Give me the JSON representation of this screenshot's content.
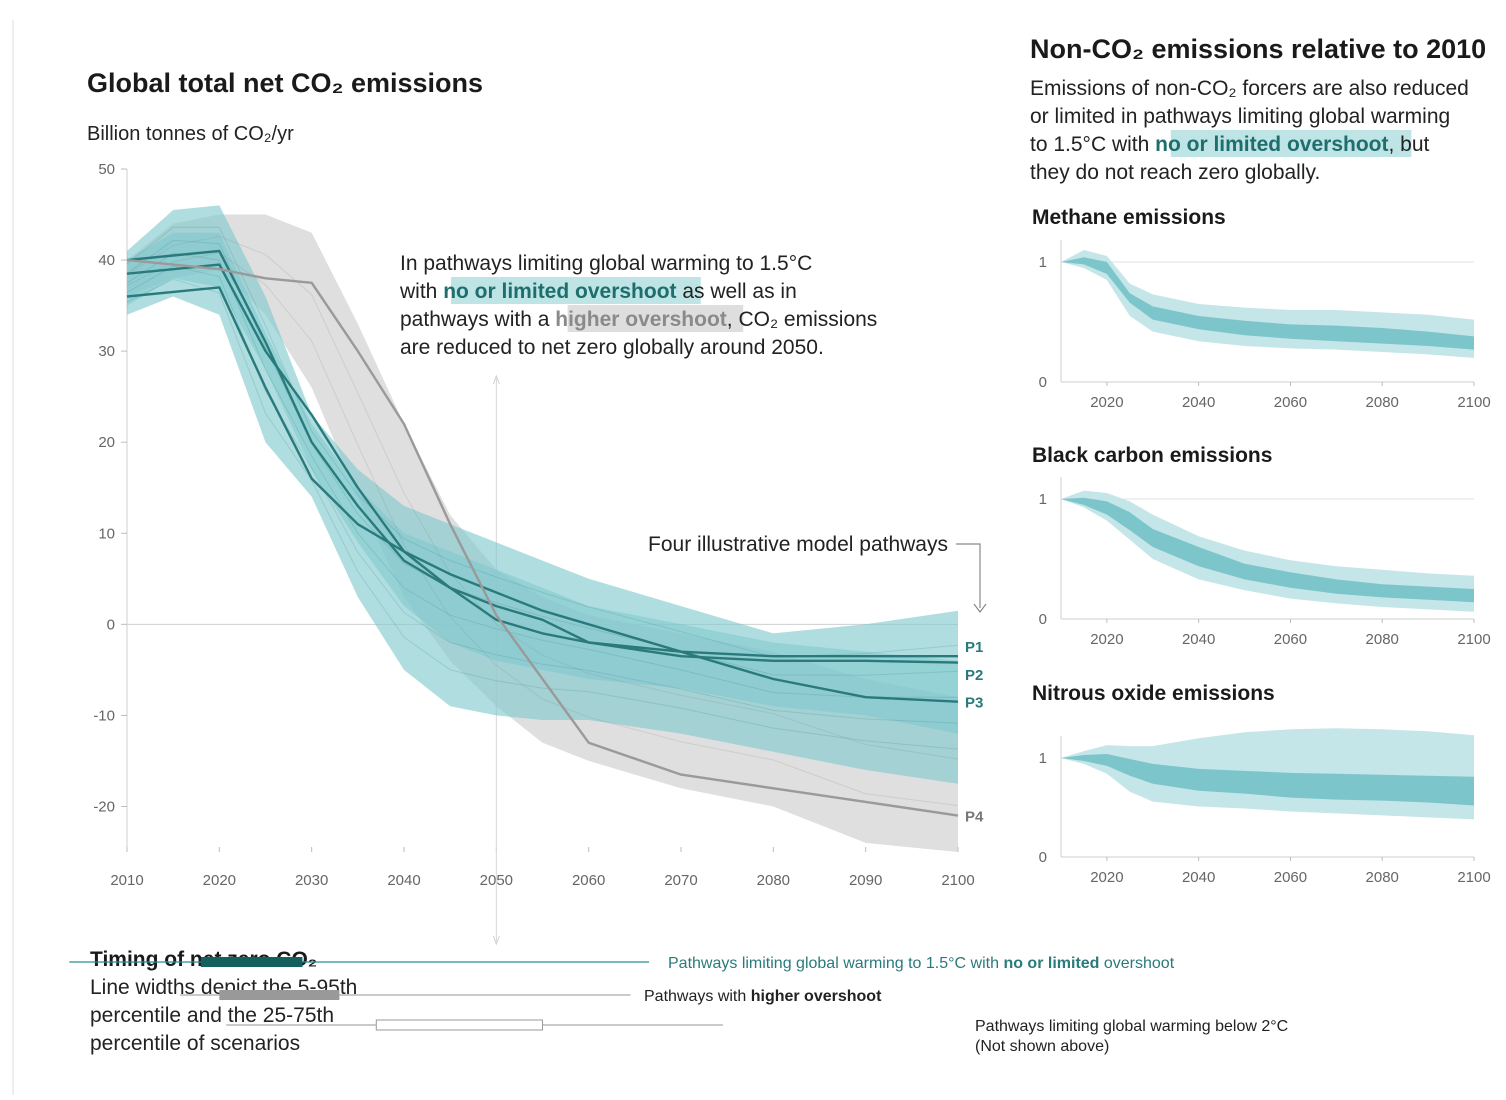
{
  "left": {
    "title": "Global total net CO₂ emissions",
    "ylabel": "Billion tonnes of CO₂/yr",
    "annotation_lines": [
      [
        "In pathways limiting global warming to 1.5°C"
      ],
      [
        "with ",
        "no or limited overshoot",
        " as well as in"
      ],
      [
        "pathways with a ",
        "higher overshoot",
        ", CO₂ emissions"
      ],
      [
        "are reduced to net zero globally around 2050."
      ]
    ],
    "pathways_note": "Four illustrative model pathways"
  },
  "right": {
    "title": "Non-CO₂ emissions relative to 2010",
    "intro_lines": [
      [
        "Emissions of non-CO₂ forcers are also reduced"
      ],
      [
        "or limited in pathways limiting global warming"
      ],
      [
        "to 1.5°C with ",
        "no or limited overshoot",
        ", but"
      ],
      [
        "they do not reach zero globally."
      ]
    ]
  },
  "timing": {
    "title": "Timing of net zero CO₂",
    "body_lines": [
      "Line widths depict the 5-95th",
      "percentile and the 25-75th",
      "percentile of scenarios"
    ],
    "rows": [
      {
        "range_5_95": [
          2007,
          2066
        ],
        "range_25_75": [
          2018,
          2029
        ],
        "style": "teal",
        "label_parts": [
          "Pathways limiting global warming to 1.5°C with ",
          "no or limited",
          " overshoot"
        ]
      },
      {
        "range_5_95": [
          2019,
          2064
        ],
        "range_25_75": [
          2020,
          2033
        ],
        "style": "grey",
        "label_parts": [
          "Pathways with ",
          "higher overshoot",
          ""
        ]
      },
      {
        "range_5_95": [
          2024,
          2074
        ],
        "range_25_75": [
          2037,
          2055
        ],
        "style": "white",
        "label_parts": [
          "Pathways limiting global warming below 2°C"
        ],
        "label_line2": "(Not shown above)"
      }
    ]
  },
  "colors": {
    "teal_band": "#7ec8cd",
    "teal_line": "#2a7a7c",
    "grey_band": "#c9c9c9",
    "grey_line": "#9a9a9a",
    "text_teal": "#1f6e6e"
  },
  "chart_data": [
    {
      "type": "area",
      "xlabel": "",
      "ylabel": "Billion tonnes of CO₂/yr",
      "xlim": [
        2010,
        2100
      ],
      "ylim": [
        -25,
        50
      ],
      "xticks": [
        2010,
        2020,
        2030,
        2040,
        2050,
        2060,
        2070,
        2080,
        2090,
        2100
      ],
      "yticks": [
        50,
        40,
        30,
        20,
        10,
        0,
        -10,
        -20
      ],
      "x": [
        2010,
        2015,
        2020,
        2025,
        2030,
        2035,
        2040,
        2045,
        2050,
        2055,
        2060,
        2070,
        2080,
        2090,
        2100
      ],
      "bands": [
        {
          "scope": "higher overshoot",
          "range": "5-95",
          "lower": [
            36,
            38,
            39,
            34,
            26,
            14,
            3,
            -4,
            -9,
            -13,
            -15,
            -18,
            -20,
            -24,
            -25
          ],
          "upper": [
            40,
            44,
            45,
            45,
            43,
            33,
            22,
            12,
            6,
            3,
            1,
            -1,
            -3,
            -6,
            -8
          ]
        },
        {
          "scope": "no or limited overshoot",
          "range": "5-95",
          "lower": [
            34,
            36,
            34,
            20,
            14,
            3,
            -5,
            -9,
            -10,
            -10.5,
            -10.5,
            -12,
            -14,
            -16,
            -17.5
          ],
          "upper": [
            41,
            45.5,
            46,
            36,
            23,
            17,
            13,
            11,
            9,
            7,
            5,
            2,
            -1,
            0,
            1.5
          ]
        },
        {
          "scope": "no or limited overshoot",
          "range": "25-75",
          "lower": [
            35,
            38,
            37,
            28,
            17,
            9,
            2,
            -2,
            -4,
            -5,
            -6,
            -7,
            -9,
            -10,
            -12
          ],
          "upper": [
            40,
            43,
            43,
            32,
            22,
            15,
            10,
            8,
            6,
            4,
            2,
            0,
            -2,
            -3,
            -4
          ]
        }
      ],
      "series": [
        {
          "name": "P1",
          "values": [
            38.5,
            39,
            39.5,
            30,
            23,
            15,
            8,
            4,
            0.5,
            -1,
            -2,
            -3,
            -3.5,
            -3.5,
            -3.5
          ]
        },
        {
          "name": "P2",
          "values": [
            40,
            40.5,
            41,
            31,
            20,
            13,
            7,
            4,
            2,
            0.5,
            -2,
            -3.5,
            -4,
            -4,
            -4.2
          ]
        },
        {
          "name": "P3",
          "values": [
            36,
            36.5,
            37,
            26,
            16,
            11,
            8,
            5.5,
            3.5,
            1.5,
            0,
            -3,
            -6,
            -8,
            -8.5
          ]
        },
        {
          "name": "P4",
          "values": [
            40,
            39.5,
            39,
            38,
            37.5,
            30,
            22,
            11,
            1,
            -6,
            -13,
            -16.5,
            -18,
            -19.5,
            -21
          ]
        }
      ]
    },
    {
      "type": "area",
      "title": "Methane emissions",
      "xlim": [
        2010,
        2100
      ],
      "ylim": [
        0,
        1.0
      ],
      "xticks": [
        2020,
        2040,
        2060,
        2080,
        2100
      ],
      "yticks": [
        0,
        1
      ],
      "x": [
        2010,
        2015,
        2020,
        2025,
        2030,
        2040,
        2050,
        2060,
        2070,
        2080,
        2090,
        2100
      ],
      "bands": [
        {
          "range": "5-95",
          "lower": [
            1,
            0.95,
            0.85,
            0.55,
            0.42,
            0.34,
            0.3,
            0.28,
            0.27,
            0.25,
            0.23,
            0.2
          ],
          "upper": [
            1,
            1.1,
            1.05,
            0.82,
            0.73,
            0.65,
            0.62,
            0.6,
            0.6,
            0.58,
            0.56,
            0.52
          ]
        },
        {
          "range": "25-75",
          "lower": [
            1,
            0.98,
            0.9,
            0.66,
            0.52,
            0.44,
            0.39,
            0.36,
            0.34,
            0.32,
            0.3,
            0.27
          ],
          "upper": [
            1,
            1.04,
            1.0,
            0.74,
            0.63,
            0.55,
            0.51,
            0.48,
            0.47,
            0.45,
            0.42,
            0.38
          ]
        }
      ]
    },
    {
      "type": "area",
      "title": "Black carbon emissions",
      "xlim": [
        2010,
        2100
      ],
      "ylim": [
        0,
        1.0
      ],
      "xticks": [
        2020,
        2040,
        2060,
        2080,
        2100
      ],
      "yticks": [
        0,
        1
      ],
      "x": [
        2010,
        2015,
        2020,
        2025,
        2030,
        2040,
        2050,
        2060,
        2070,
        2080,
        2090,
        2100
      ],
      "bands": [
        {
          "range": "5-95",
          "lower": [
            1,
            0.93,
            0.82,
            0.66,
            0.5,
            0.33,
            0.24,
            0.17,
            0.13,
            0.1,
            0.08,
            0.06
          ],
          "upper": [
            1,
            1.07,
            1.05,
            0.98,
            0.87,
            0.69,
            0.57,
            0.49,
            0.44,
            0.41,
            0.38,
            0.36
          ]
        },
        {
          "range": "25-75",
          "lower": [
            1,
            0.95,
            0.87,
            0.74,
            0.6,
            0.44,
            0.33,
            0.26,
            0.21,
            0.18,
            0.16,
            0.14
          ],
          "upper": [
            1,
            1.01,
            0.98,
            0.89,
            0.75,
            0.6,
            0.46,
            0.39,
            0.33,
            0.29,
            0.27,
            0.25
          ]
        }
      ]
    },
    {
      "type": "area",
      "title": "Nitrous oxide emissions",
      "xlim": [
        2010,
        2100
      ],
      "ylim": [
        0,
        1.0
      ],
      "xticks": [
        2020,
        2040,
        2060,
        2080,
        2100
      ],
      "yticks": [
        0,
        1
      ],
      "x": [
        2010,
        2015,
        2020,
        2025,
        2030,
        2040,
        2050,
        2060,
        2070,
        2080,
        2090,
        2100
      ],
      "bands": [
        {
          "range": "5-95",
          "lower": [
            1,
            0.94,
            0.84,
            0.66,
            0.56,
            0.51,
            0.49,
            0.46,
            0.44,
            0.42,
            0.4,
            0.38
          ],
          "upper": [
            1,
            1.07,
            1.13,
            1.12,
            1.12,
            1.2,
            1.26,
            1.29,
            1.3,
            1.29,
            1.27,
            1.23
          ]
        },
        {
          "range": "25-75",
          "lower": [
            1,
            0.97,
            0.92,
            0.82,
            0.74,
            0.67,
            0.64,
            0.6,
            0.58,
            0.57,
            0.55,
            0.52
          ],
          "upper": [
            1,
            1.03,
            1.04,
            0.99,
            0.94,
            0.89,
            0.87,
            0.85,
            0.84,
            0.83,
            0.82,
            0.81
          ]
        }
      ]
    }
  ]
}
